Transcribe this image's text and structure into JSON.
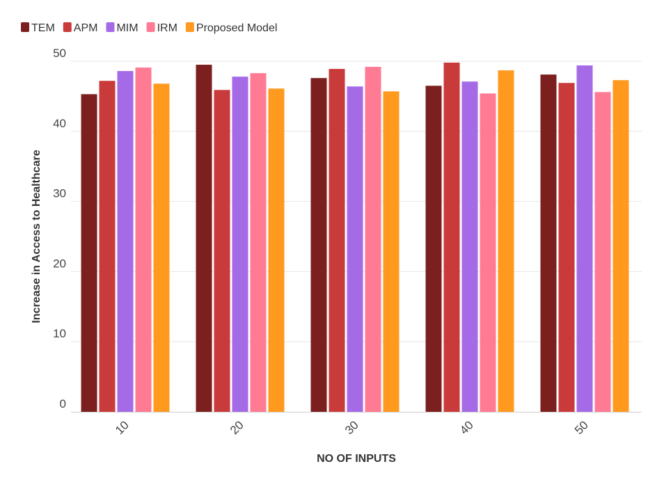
{
  "chart_data": {
    "type": "bar",
    "title": "",
    "xlabel": "NO OF INPUTS",
    "ylabel": "Increase in Access to Healthcare",
    "categories": [
      "10",
      "20",
      "30",
      "40",
      "50"
    ],
    "ylim": [
      0,
      50
    ],
    "yticks": [
      0,
      10,
      20,
      30,
      40,
      50
    ],
    "grid": true,
    "legend_position": "top-left",
    "series": [
      {
        "name": "TEM",
        "color": "#7b1f1f",
        "values": [
          45.3,
          49.5,
          47.6,
          46.5,
          48.1
        ]
      },
      {
        "name": "APM",
        "color": "#c93a3a",
        "values": [
          47.2,
          45.9,
          48.9,
          49.8,
          46.9
        ]
      },
      {
        "name": "MIM",
        "color": "#a56ae6",
        "values": [
          48.6,
          47.8,
          46.4,
          47.1,
          49.4
        ]
      },
      {
        "name": "IRM",
        "color": "#ff7b94",
        "values": [
          49.1,
          48.3,
          49.2,
          45.4,
          45.6
        ]
      },
      {
        "name": "Proposed Model",
        "color": "#ff9a1f",
        "values": [
          46.8,
          46.1,
          45.7,
          48.7,
          47.3
        ]
      }
    ]
  }
}
